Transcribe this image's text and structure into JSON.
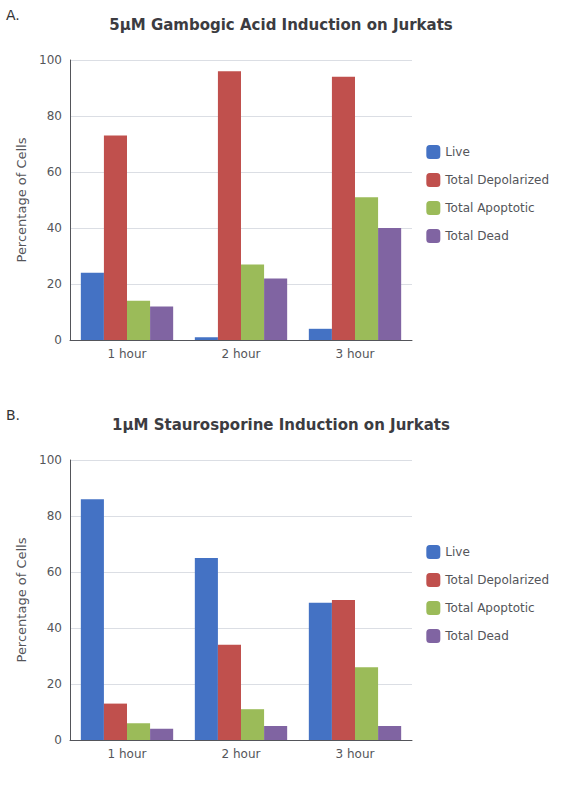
{
  "chart_data": [
    {
      "type": "bar",
      "title": "5μM Gambogic Acid Induction on Jurkats",
      "annotations": [
        "A."
      ],
      "categories": [
        "1 hour",
        "2 hour",
        "3 hour"
      ],
      "series": [
        {
          "name": "Live",
          "color": "#4472C4",
          "values": [
            24,
            1,
            4
          ]
        },
        {
          "name": "Total Depolarized",
          "color": "#C0504D",
          "values": [
            73,
            96,
            94
          ]
        },
        {
          "name": "Total Apoptotic",
          "color": "#9BBB59",
          "values": [
            14,
            27,
            51
          ]
        },
        {
          "name": "Total Dead",
          "color": "#8064A2",
          "values": [
            12,
            22,
            40
          ]
        }
      ],
      "ylabel": "Percentage of Cells",
      "ylim": [
        0,
        100
      ],
      "yticks": [
        0,
        20,
        40,
        60,
        80,
        100
      ],
      "grid": true,
      "legend": "right"
    },
    {
      "type": "bar",
      "title": "1μM Staurosporine Induction on Jurkats",
      "annotations": [
        "B."
      ],
      "categories": [
        "1 hour",
        "2 hour",
        "3 hour"
      ],
      "series": [
        {
          "name": "Live",
          "color": "#4472C4",
          "values": [
            86,
            65,
            49
          ]
        },
        {
          "name": "Total Depolarized",
          "color": "#C0504D",
          "values": [
            13,
            34,
            50
          ]
        },
        {
          "name": "Total Apoptotic",
          "color": "#9BBB59",
          "values": [
            6,
            11,
            26
          ]
        },
        {
          "name": "Total Dead",
          "color": "#8064A2",
          "values": [
            4,
            5,
            5
          ]
        }
      ],
      "ylabel": "Percentage of Cells",
      "ylim": [
        0,
        100
      ],
      "yticks": [
        0,
        20,
        40,
        60,
        80,
        100
      ],
      "grid": true,
      "legend": "right"
    }
  ]
}
